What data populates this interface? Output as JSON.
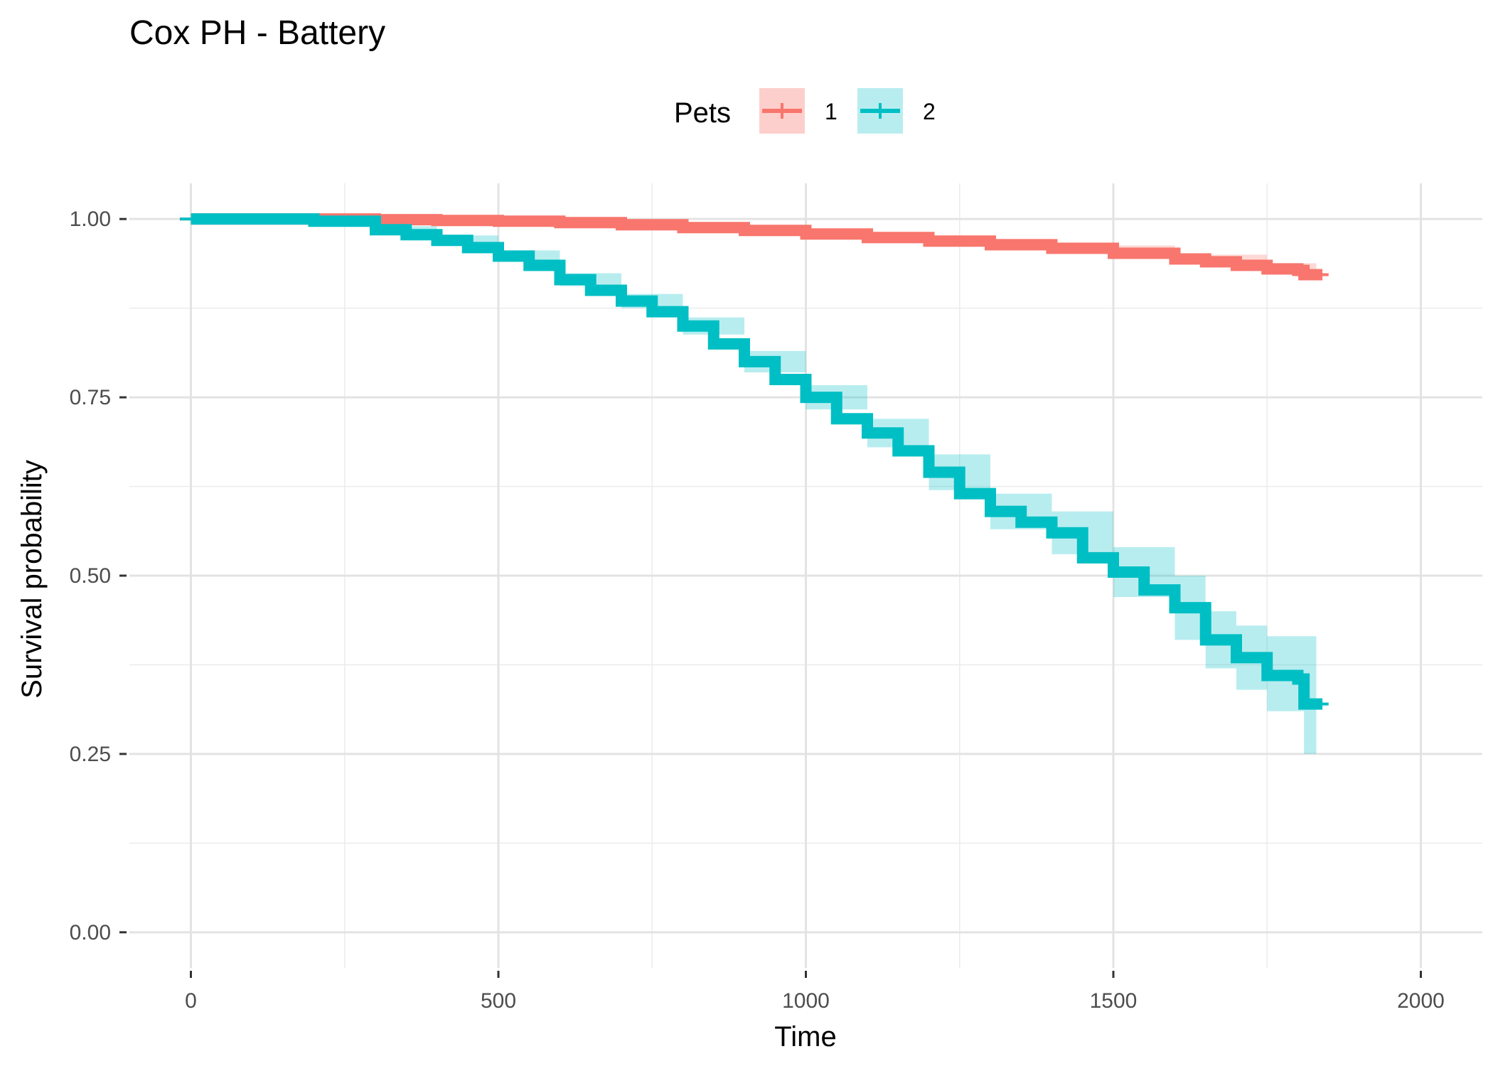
{
  "chart_data": {
    "type": "line",
    "title": "Cox PH - Battery",
    "xlabel": "Time",
    "ylabel": "Survival probability",
    "xlim": [
      -100,
      2100
    ],
    "ylim": [
      -0.05,
      1.05
    ],
    "x_ticks": [
      0,
      500,
      1000,
      1500,
      2000
    ],
    "y_ticks": [
      0,
      0.25,
      0.5,
      0.75,
      1
    ],
    "x_tick_labels": [
      "0",
      "500",
      "1000",
      "1500",
      "2000"
    ],
    "y_tick_labels": [
      "0.00",
      "0.25",
      "0.50",
      "0.75",
      "1.00"
    ],
    "grid": true,
    "legend": {
      "title": "Pets",
      "position": "top"
    },
    "series": [
      {
        "name": "1",
        "color": "#F8766D",
        "points": [
          [
            0,
            1.0
          ],
          [
            100,
            1.0
          ],
          [
            200,
            1.0
          ],
          [
            300,
            0.999
          ],
          [
            400,
            0.998
          ],
          [
            500,
            0.997
          ],
          [
            600,
            0.995
          ],
          [
            700,
            0.992
          ],
          [
            800,
            0.988
          ],
          [
            900,
            0.984
          ],
          [
            1000,
            0.979
          ],
          [
            1100,
            0.974
          ],
          [
            1200,
            0.969
          ],
          [
            1300,
            0.964
          ],
          [
            1400,
            0.959
          ],
          [
            1500,
            0.952
          ],
          [
            1600,
            0.944
          ],
          [
            1650,
            0.94
          ],
          [
            1700,
            0.935
          ],
          [
            1750,
            0.93
          ],
          [
            1800,
            0.928
          ],
          [
            1810,
            0.922
          ],
          [
            1840,
            0.922
          ]
        ],
        "ci_lower": [
          [
            0,
            1.0
          ],
          [
            200,
            0.999
          ],
          [
            400,
            0.997
          ],
          [
            600,
            0.993
          ],
          [
            800,
            0.986
          ],
          [
            1000,
            0.976
          ],
          [
            1200,
            0.966
          ],
          [
            1400,
            0.955
          ],
          [
            1600,
            0.938
          ],
          [
            1750,
            0.922
          ],
          [
            1800,
            0.918
          ],
          [
            1830,
            0.905
          ]
        ],
        "ci_upper": [
          [
            0,
            1.0
          ],
          [
            200,
            1.0
          ],
          [
            400,
            0.999
          ],
          [
            600,
            0.997
          ],
          [
            800,
            0.99
          ],
          [
            1000,
            0.982
          ],
          [
            1200,
            0.972
          ],
          [
            1400,
            0.963
          ],
          [
            1600,
            0.95
          ],
          [
            1750,
            0.938
          ],
          [
            1800,
            0.938
          ],
          [
            1830,
            0.939
          ]
        ]
      },
      {
        "name": "2",
        "color": "#00BFC4",
        "points": [
          [
            0,
            1.0
          ],
          [
            100,
            1.0
          ],
          [
            200,
            0.997
          ],
          [
            300,
            0.985
          ],
          [
            350,
            0.978
          ],
          [
            400,
            0.97
          ],
          [
            450,
            0.96
          ],
          [
            500,
            0.948
          ],
          [
            550,
            0.935
          ],
          [
            600,
            0.915
          ],
          [
            650,
            0.9
          ],
          [
            700,
            0.885
          ],
          [
            750,
            0.87
          ],
          [
            800,
            0.85
          ],
          [
            850,
            0.825
          ],
          [
            900,
            0.8
          ],
          [
            950,
            0.775
          ],
          [
            1000,
            0.75
          ],
          [
            1050,
            0.72
          ],
          [
            1100,
            0.7
          ],
          [
            1150,
            0.675
          ],
          [
            1200,
            0.645
          ],
          [
            1250,
            0.615
          ],
          [
            1300,
            0.59
          ],
          [
            1350,
            0.575
          ],
          [
            1400,
            0.56
          ],
          [
            1450,
            0.525
          ],
          [
            1500,
            0.505
          ],
          [
            1550,
            0.48
          ],
          [
            1600,
            0.455
          ],
          [
            1650,
            0.41
          ],
          [
            1700,
            0.385
          ],
          [
            1750,
            0.36
          ],
          [
            1800,
            0.355
          ],
          [
            1810,
            0.32
          ],
          [
            1840,
            0.32
          ]
        ],
        "ci_lower": [
          [
            0,
            1.0
          ],
          [
            200,
            0.993
          ],
          [
            300,
            0.98
          ],
          [
            400,
            0.963
          ],
          [
            500,
            0.94
          ],
          [
            600,
            0.906
          ],
          [
            700,
            0.875
          ],
          [
            800,
            0.838
          ],
          [
            900,
            0.785
          ],
          [
            1000,
            0.733
          ],
          [
            1100,
            0.68
          ],
          [
            1200,
            0.62
          ],
          [
            1300,
            0.565
          ],
          [
            1400,
            0.53
          ],
          [
            1500,
            0.47
          ],
          [
            1600,
            0.41
          ],
          [
            1650,
            0.37
          ],
          [
            1700,
            0.34
          ],
          [
            1750,
            0.31
          ],
          [
            1800,
            0.31
          ],
          [
            1810,
            0.25
          ],
          [
            1830,
            0.25
          ]
        ],
        "ci_upper": [
          [
            0,
            1.0
          ],
          [
            200,
            1.0
          ],
          [
            300,
            0.99
          ],
          [
            400,
            0.977
          ],
          [
            500,
            0.956
          ],
          [
            600,
            0.924
          ],
          [
            700,
            0.895
          ],
          [
            800,
            0.862
          ],
          [
            900,
            0.815
          ],
          [
            1000,
            0.767
          ],
          [
            1100,
            0.72
          ],
          [
            1200,
            0.67
          ],
          [
            1300,
            0.615
          ],
          [
            1400,
            0.59
          ],
          [
            1500,
            0.54
          ],
          [
            1600,
            0.5
          ],
          [
            1650,
            0.45
          ],
          [
            1700,
            0.43
          ],
          [
            1750,
            0.415
          ],
          [
            1800,
            0.415
          ],
          [
            1810,
            0.415
          ],
          [
            1830,
            0.415
          ]
        ]
      }
    ]
  }
}
